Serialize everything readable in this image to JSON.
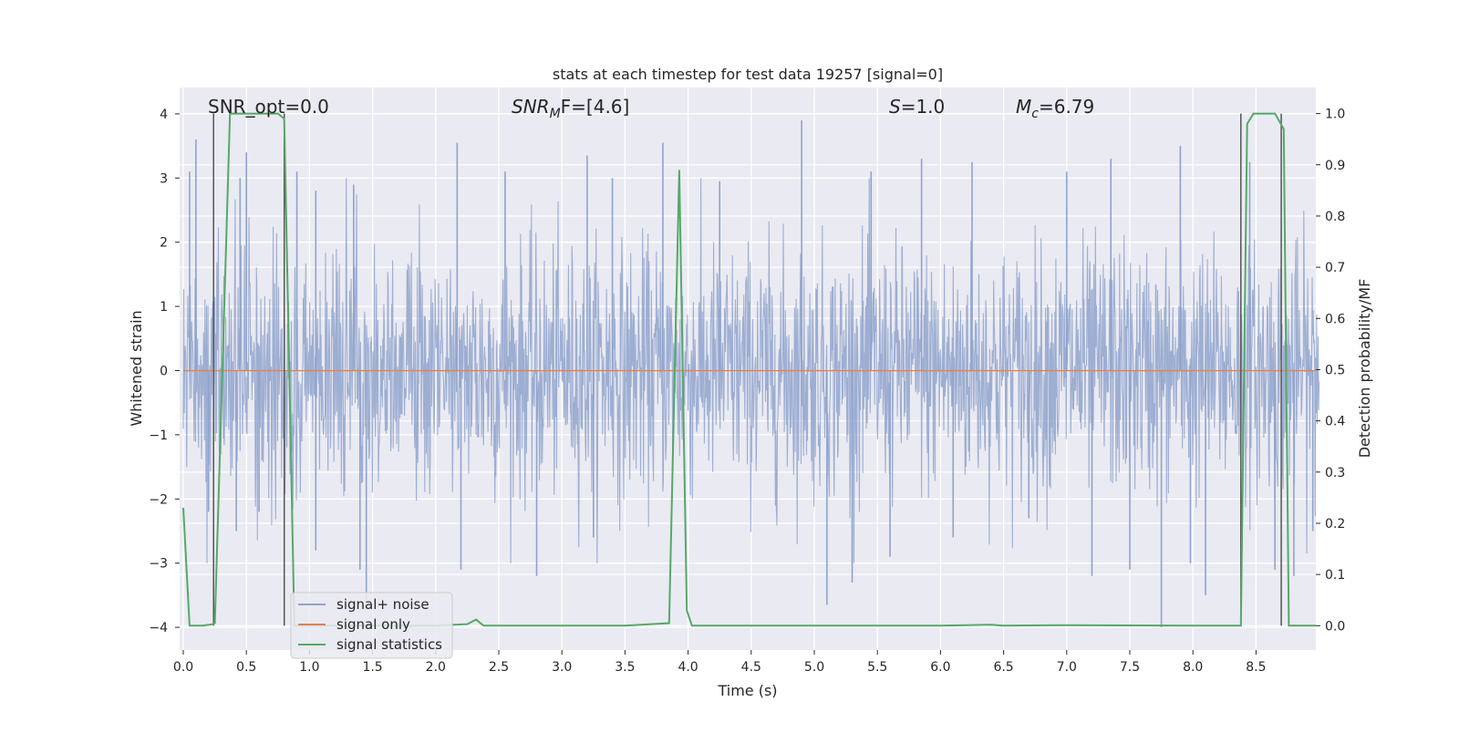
{
  "chart_data": {
    "type": "line",
    "title": "stats at each timestep for test data 19257 [signal=0]",
    "xlabel": "Time (s)",
    "ylabel": "Whitened strain",
    "y2label": "Detection probability/MF",
    "xlim": [
      0.0,
      9.0
    ],
    "ylim": [
      -4.4,
      4.4
    ],
    "y2lim": [
      -0.05,
      1.05
    ],
    "xticks": [
      0.0,
      0.5,
      1.0,
      1.5,
      2.0,
      2.5,
      3.0,
      3.5,
      4.0,
      4.5,
      5.0,
      5.5,
      6.0,
      6.5,
      7.0,
      7.5,
      8.0,
      8.5
    ],
    "yticks": [
      -4,
      -3,
      -2,
      -1,
      0,
      1,
      2,
      3,
      4
    ],
    "y2ticks": [
      0.0,
      0.1,
      0.2,
      0.3,
      0.4,
      0.5,
      0.6,
      0.7,
      0.8,
      0.9,
      1.0
    ],
    "grid": true,
    "legend_position": "lower-left",
    "annotations": {
      "snr_opt": "SNR_opt=0.0",
      "snr_mf_label": "SNR",
      "snr_mf_sub": "M",
      "snr_mf_value": "F=[4.6]",
      "s_label": "S",
      "s_value": "=1.0",
      "mc_label": "M",
      "mc_sub": "c",
      "mc_value": "=6.79"
    },
    "series": [
      {
        "name": "signal+ noise",
        "color": "#8fa3cc",
        "description": "whitened noisy strain, approx. Gaussian, |y| mostly < 2.5 with occasional peaks up to ~3.9",
        "peaks": [
          [
            0.05,
            3.1
          ],
          [
            0.1,
            3.6
          ],
          [
            0.45,
            3.0
          ],
          [
            0.5,
            3.4
          ],
          [
            0.9,
            3.1
          ],
          [
            1.05,
            2.8
          ],
          [
            1.35,
            2.9
          ],
          [
            2.17,
            3.55
          ],
          [
            2.55,
            3.1
          ],
          [
            3.2,
            3.35
          ],
          [
            3.4,
            3.0
          ],
          [
            3.8,
            3.55
          ],
          [
            4.25,
            2.95
          ],
          [
            4.9,
            3.9
          ],
          [
            5.45,
            3.1
          ],
          [
            5.85,
            3.3
          ],
          [
            6.25,
            3.25
          ],
          [
            7.0,
            3.1
          ],
          [
            7.35,
            3.3
          ],
          [
            7.9,
            3.5
          ],
          [
            8.45,
            3.25
          ],
          [
            0.2,
            -2.2
          ],
          [
            0.42,
            -2.5
          ],
          [
            0.6,
            -2.2
          ],
          [
            1.05,
            -2.8
          ],
          [
            1.4,
            -3.1
          ],
          [
            1.45,
            -3.6
          ],
          [
            2.2,
            -3.1
          ],
          [
            2.8,
            -3.2
          ],
          [
            3.25,
            -2.6
          ],
          [
            5.1,
            -3.65
          ],
          [
            5.3,
            -3.3
          ],
          [
            5.6,
            -2.9
          ],
          [
            6.1,
            -2.6
          ],
          [
            6.7,
            -2.3
          ],
          [
            7.2,
            -3.2
          ],
          [
            7.5,
            -3.1
          ],
          [
            7.75,
            -4.0
          ],
          [
            7.98,
            -3.0
          ],
          [
            8.1,
            -3.5
          ],
          [
            8.65,
            -3.1
          ],
          [
            8.8,
            -3.2
          ],
          [
            8.95,
            -2.5
          ]
        ]
      },
      {
        "name": "signal only",
        "color": "#dd8452",
        "x": [
          0.0,
          9.0
        ],
        "y": [
          0.0,
          0.0
        ]
      },
      {
        "name": "signal statistics",
        "color": "#55a868",
        "axis": "right",
        "x": [
          0.0,
          0.05,
          0.15,
          0.24,
          0.25,
          0.31,
          0.37,
          0.55,
          0.75,
          0.8,
          0.88,
          0.92,
          1.0,
          1.2,
          2.0,
          2.25,
          2.32,
          2.38,
          2.45,
          3.0,
          3.5,
          3.85,
          3.93,
          3.99,
          4.03,
          4.1,
          5.0,
          6.0,
          6.4,
          6.5,
          7.0,
          8.0,
          8.38,
          8.43,
          8.48,
          8.54,
          8.65,
          8.72,
          8.76,
          8.8,
          9.0
        ],
        "y": [
          0.23,
          0.0,
          0.0,
          0.003,
          0.005,
          0.5,
          1.0,
          1.0,
          1.0,
          0.99,
          0.0,
          0.0,
          0.0,
          0.0,
          0.0,
          0.003,
          0.012,
          0.0,
          0.0,
          0.0,
          0.0,
          0.005,
          0.89,
          0.03,
          0.0,
          0.0,
          0.0,
          0.0,
          0.002,
          0.0,
          0.001,
          0.0,
          0.0,
          0.98,
          1.0,
          1.0,
          1.0,
          0.97,
          0.0,
          0.0,
          0.0
        ]
      }
    ],
    "vertical_markers": [
      0.24,
      0.8,
      8.38,
      8.7
    ]
  }
}
